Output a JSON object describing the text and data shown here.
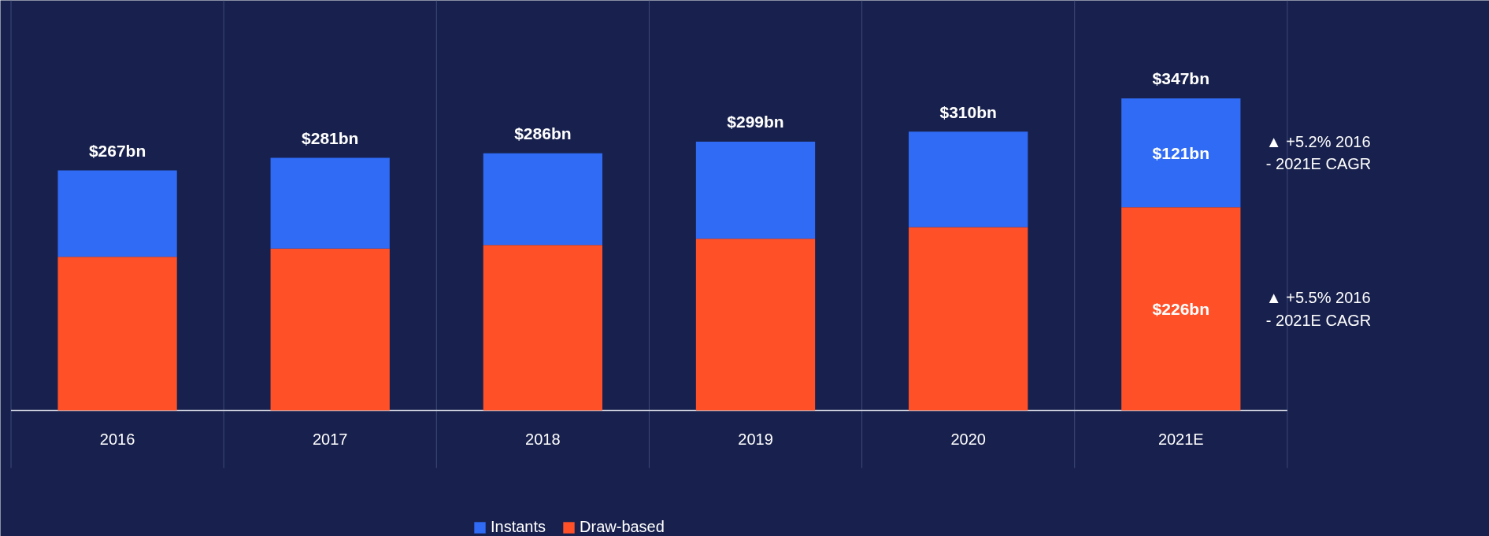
{
  "chart_data": {
    "type": "bar",
    "stacked": true,
    "categories": [
      "2016",
      "2017",
      "2018",
      "2019",
      "2020",
      "2021E"
    ],
    "series": [
      {
        "name": "Draw-based",
        "color": "#ff5028",
        "values": [
          171,
          180,
          184,
          191,
          204,
          226
        ],
        "value_labels": [
          null,
          null,
          null,
          null,
          null,
          "$226bn"
        ]
      },
      {
        "name": "Instants",
        "color": "#2f6bf5",
        "values": [
          96,
          101,
          102,
          108,
          106,
          121
        ],
        "value_labels": [
          null,
          null,
          null,
          null,
          null,
          "$121bn"
        ]
      }
    ],
    "totals": [
      "$267bn",
      "$281bn",
      "$286bn",
      "$299bn",
      "$310bn",
      "$347bn"
    ],
    "annotations": [
      "▲ +5.2% 2016 - 2021E CAGR",
      "▲ +5.5% 2016 - 2021E CAGR"
    ],
    "grid": "x",
    "legend": "bottom"
  }
}
